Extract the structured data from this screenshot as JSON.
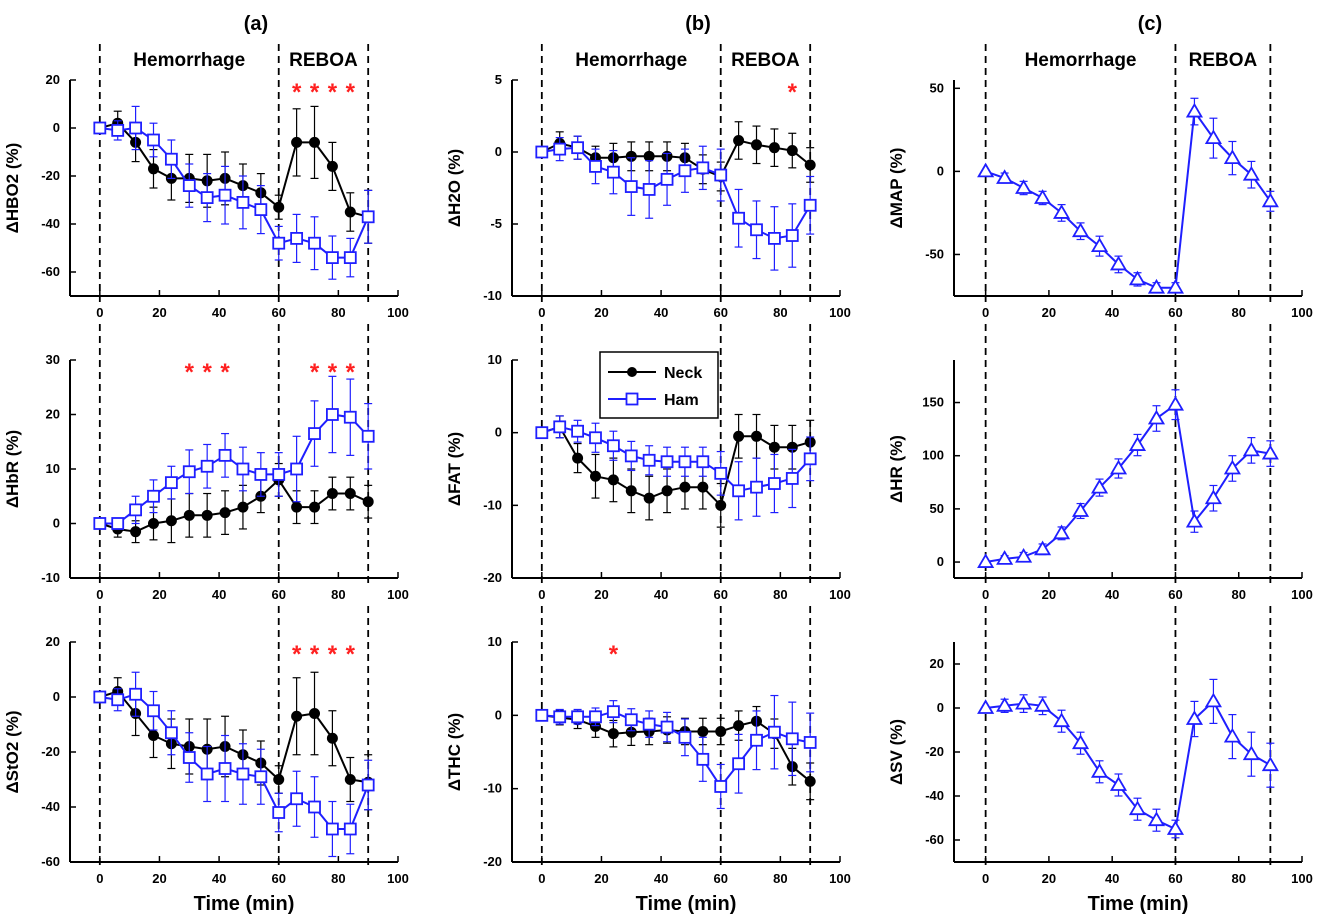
{
  "colors": {
    "neck": "#000000",
    "ham": "#1f1fff",
    "star": "#ff2020"
  },
  "x_ticks": [
    "0",
    "20",
    "40",
    "60",
    "80",
    "100"
  ],
  "chart_data": [
    {
      "type": "line",
      "panel_label": "(a)",
      "xlabel": "",
      "ylabel": "ΔHBO2 (%)",
      "ylim": [
        -70,
        20
      ],
      "yticks": [
        -60,
        -40,
        -20,
        0,
        20
      ],
      "xlim": [
        -10,
        100
      ],
      "phases": [
        "Hemorrhage",
        "REBOA"
      ],
      "stars_x": [
        66,
        72,
        78,
        84
      ],
      "series": [
        {
          "x": [
            0,
            6,
            12,
            18,
            24,
            30,
            36,
            42,
            48,
            54,
            60,
            66,
            72,
            78,
            84,
            90
          ],
          "y": [
            0,
            2,
            -6,
            -17,
            -21,
            -21,
            -22,
            -21,
            -24,
            -27,
            -33,
            -6,
            -6,
            -16,
            -35,
            -37
          ],
          "err": [
            0,
            5,
            8,
            8,
            9,
            10,
            11,
            11,
            9,
            8,
            5,
            14,
            15,
            10,
            8,
            11
          ],
          "marker": "circle",
          "color": "#000000"
        },
        {
          "x": [
            0,
            6,
            12,
            18,
            24,
            30,
            36,
            42,
            48,
            54,
            60,
            66,
            72,
            78,
            84,
            90
          ],
          "y": [
            0,
            -1,
            0,
            -5,
            -13,
            -24,
            -29,
            -28,
            -31,
            -34,
            -48,
            -46,
            -48,
            -54,
            -54,
            -37
          ],
          "err": [
            0,
            4,
            9,
            7,
            8,
            9,
            10,
            12,
            11,
            10,
            7,
            10,
            11,
            9,
            8,
            11
          ],
          "marker": "square",
          "color": "#1f1fff"
        }
      ]
    },
    {
      "type": "line",
      "panel_label": "(b)",
      "xlabel": "",
      "ylabel": "ΔH2O (%)",
      "ylim": [
        -10,
        5
      ],
      "yticks": [
        -10,
        -5,
        0,
        5
      ],
      "xlim": [
        -10,
        100
      ],
      "phases": [
        "Hemorrhage",
        "REBOA"
      ],
      "stars_x": [
        84
      ],
      "series": [
        {
          "x": [
            0,
            6,
            12,
            18,
            24,
            30,
            36,
            42,
            48,
            54,
            60,
            66,
            72,
            78,
            84,
            90
          ],
          "y": [
            0,
            0.6,
            0.3,
            -0.4,
            -0.4,
            -0.3,
            -0.3,
            -0.3,
            -0.4,
            -1.2,
            -1.7,
            0.8,
            0.5,
            0.3,
            0.1,
            -0.9
          ],
          "err": [
            0,
            0.8,
            0.8,
            0.8,
            1.0,
            1.0,
            1.0,
            1.0,
            1.0,
            1.0,
            1.0,
            1.3,
            1.3,
            1.3,
            1.2,
            1.2
          ],
          "marker": "circle",
          "color": "#000000"
        },
        {
          "x": [
            0,
            6,
            12,
            18,
            24,
            30,
            36,
            42,
            48,
            54,
            60,
            66,
            72,
            78,
            84,
            90
          ],
          "y": [
            0,
            0.2,
            0.3,
            -1.0,
            -1.4,
            -2.4,
            -2.6,
            -1.9,
            -1.3,
            -1.1,
            -1.6,
            -4.6,
            -5.4,
            -6.0,
            -5.8,
            -3.7
          ],
          "err": [
            0,
            0.8,
            0.8,
            1.2,
            1.5,
            2.0,
            2.0,
            1.8,
            1.5,
            1.5,
            1.8,
            2.0,
            2.0,
            2.2,
            2.2,
            2.0
          ],
          "marker": "square",
          "color": "#1f1fff"
        }
      ]
    },
    {
      "type": "line",
      "panel_label": "(c)",
      "xlabel": "",
      "ylabel": "ΔMAP (%)",
      "ylim": [
        -75,
        55
      ],
      "yticks": [
        -50,
        0,
        50
      ],
      "xlim": [
        -10,
        100
      ],
      "phases": [
        "Hemorrhage",
        "REBOA"
      ],
      "stars_x": [],
      "series": [
        {
          "x": [
            0,
            6,
            12,
            18,
            24,
            30,
            36,
            42,
            48,
            54,
            60,
            66,
            72,
            78,
            84,
            90
          ],
          "y": [
            0,
            -4,
            -10,
            -16,
            -25,
            -36,
            -45,
            -56,
            -65,
            -70,
            -70,
            36,
            20,
            8,
            -2,
            -18
          ],
          "err": [
            0,
            3,
            4,
            4,
            5,
            5,
            6,
            5,
            4,
            3,
            3,
            8,
            12,
            10,
            8,
            6
          ],
          "marker": "triangle",
          "color": "#1f1fff"
        }
      ]
    },
    {
      "type": "line",
      "panel_label": "",
      "xlabel": "",
      "ylabel": "ΔHbR (%)",
      "ylim": [
        -10,
        30
      ],
      "yticks": [
        -10,
        0,
        10,
        20,
        30
      ],
      "xlim": [
        -10,
        100
      ],
      "phases": [],
      "stars_x": [
        30,
        36,
        42,
        72,
        78,
        84
      ],
      "series": [
        {
          "x": [
            0,
            6,
            12,
            18,
            24,
            30,
            36,
            42,
            48,
            54,
            60,
            66,
            72,
            78,
            84,
            90
          ],
          "y": [
            0,
            -1,
            -1.5,
            0,
            0.5,
            1.5,
            1.5,
            2,
            3,
            5,
            8,
            3,
            3,
            5.5,
            5.5,
            4
          ],
          "err": [
            0,
            1.5,
            2,
            3,
            4,
            4,
            4,
            4,
            4,
            3,
            3,
            3,
            3,
            3,
            3,
            3
          ],
          "marker": "circle",
          "color": "#000000"
        },
        {
          "x": [
            0,
            6,
            12,
            18,
            24,
            30,
            36,
            42,
            48,
            54,
            60,
            66,
            72,
            78,
            84,
            90
          ],
          "y": [
            0,
            0,
            2.5,
            5,
            7.5,
            9.5,
            10.5,
            12.5,
            10,
            9,
            9,
            10,
            16.5,
            20,
            19.5,
            16
          ],
          "err": [
            0,
            1,
            2.5,
            3,
            3,
            4,
            4,
            4,
            4,
            4,
            4,
            6,
            6,
            7,
            7,
            6
          ],
          "marker": "square",
          "color": "#1f1fff"
        }
      ]
    },
    {
      "type": "line",
      "panel_label": "",
      "xlabel": "",
      "ylabel": "ΔFAT (%)",
      "ylim": [
        -20,
        10
      ],
      "yticks": [
        -20,
        -10,
        0,
        10
      ],
      "xlim": [
        -10,
        100
      ],
      "phases": [],
      "stars_x": [],
      "legend": {
        "entries": [
          "Neck",
          "Ham"
        ]
      },
      "series": [
        {
          "name": "Neck",
          "x": [
            0,
            6,
            12,
            18,
            24,
            30,
            36,
            42,
            48,
            54,
            60,
            66,
            72,
            78,
            84,
            90
          ],
          "y": [
            0,
            0.8,
            -3.5,
            -6,
            -6.5,
            -8,
            -9,
            -8,
            -7.5,
            -7.5,
            -10,
            -0.5,
            -0.5,
            -2,
            -2,
            -1.3
          ],
          "err": [
            0,
            1.5,
            2,
            3,
            3,
            3,
            3,
            3,
            3,
            3,
            3,
            3,
            3,
            3,
            3,
            3
          ],
          "marker": "circle",
          "color": "#000000"
        },
        {
          "name": "Ham",
          "x": [
            0,
            6,
            12,
            18,
            24,
            30,
            36,
            42,
            48,
            54,
            60,
            66,
            72,
            78,
            84,
            90
          ],
          "y": [
            0,
            0.8,
            0.2,
            -0.7,
            -1.8,
            -3.2,
            -3.8,
            -4,
            -4,
            -4,
            -5.6,
            -8,
            -7.5,
            -7,
            -6.3,
            -3.6
          ],
          "err": [
            0,
            1.5,
            1.5,
            2,
            2,
            2,
            2,
            2,
            2,
            2,
            3,
            4,
            4,
            4,
            4,
            3
          ],
          "marker": "square",
          "color": "#1f1fff"
        }
      ]
    },
    {
      "type": "line",
      "panel_label": "",
      "xlabel": "",
      "ylabel": "ΔHR (%)",
      "ylim": [
        -15,
        190
      ],
      "yticks": [
        0,
        50,
        100,
        150
      ],
      "xlim": [
        -10,
        100
      ],
      "phases": [],
      "stars_x": [],
      "series": [
        {
          "x": [
            0,
            6,
            12,
            18,
            24,
            30,
            36,
            42,
            48,
            54,
            60,
            66,
            72,
            78,
            84,
            90
          ],
          "y": [
            0,
            3,
            5,
            12,
            27,
            48,
            70,
            88,
            110,
            135,
            148,
            38,
            60,
            88,
            105,
            102
          ],
          "err": [
            0,
            3,
            4,
            5,
            6,
            7,
            8,
            9,
            10,
            12,
            14,
            10,
            12,
            12,
            12,
            12
          ],
          "marker": "triangle",
          "color": "#1f1fff"
        }
      ]
    },
    {
      "type": "line",
      "panel_label": "",
      "xlabel": "Time (min)",
      "ylabel": "ΔStO2 (%)",
      "ylim": [
        -60,
        20
      ],
      "yticks": [
        -60,
        -40,
        -20,
        0,
        20
      ],
      "xlim": [
        -10,
        100
      ],
      "phases": [],
      "stars_x": [
        66,
        72,
        78,
        84
      ],
      "series": [
        {
          "x": [
            0,
            6,
            12,
            18,
            24,
            30,
            36,
            42,
            48,
            54,
            60,
            66,
            72,
            78,
            84,
            90
          ],
          "y": [
            0,
            2,
            -6,
            -14,
            -17,
            -18,
            -19,
            -18,
            -21,
            -24,
            -30,
            -7,
            -6,
            -15,
            -30,
            -31
          ],
          "err": [
            0,
            5,
            8,
            8,
            9,
            10,
            11,
            11,
            9,
            8,
            5,
            14,
            15,
            10,
            8,
            10
          ],
          "marker": "circle",
          "color": "#000000"
        },
        {
          "x": [
            0,
            6,
            12,
            18,
            24,
            30,
            36,
            42,
            48,
            54,
            60,
            66,
            72,
            78,
            84,
            90
          ],
          "y": [
            0,
            -1,
            1,
            -5,
            -13,
            -22,
            -28,
            -26,
            -28,
            -29,
            -42,
            -37,
            -40,
            -48,
            -48,
            -32
          ],
          "err": [
            0,
            4,
            8,
            7,
            8,
            9,
            10,
            12,
            11,
            10,
            7,
            10,
            11,
            10,
            9,
            9
          ],
          "marker": "square",
          "color": "#1f1fff"
        }
      ]
    },
    {
      "type": "line",
      "panel_label": "",
      "xlabel": "Time (min)",
      "ylabel": "ΔTHC (%)",
      "ylim": [
        -20,
        10
      ],
      "yticks": [
        -20,
        -10,
        0,
        10
      ],
      "xlim": [
        -10,
        100
      ],
      "phases": [],
      "stars_x": [
        24
      ],
      "series": [
        {
          "x": [
            0,
            6,
            12,
            18,
            24,
            30,
            36,
            42,
            48,
            54,
            60,
            66,
            72,
            78,
            84,
            90
          ],
          "y": [
            0,
            -0.3,
            -0.6,
            -1.5,
            -2.5,
            -2.3,
            -2.2,
            -2,
            -2.2,
            -2.2,
            -2.2,
            -1.4,
            -0.8,
            -2.5,
            -7,
            -9
          ],
          "err": [
            0,
            1,
            1.2,
            1.5,
            1.8,
            1.8,
            1.8,
            1.8,
            1.8,
            1.8,
            1.8,
            2,
            2,
            2,
            2.5,
            2.5
          ],
          "marker": "circle",
          "color": "#000000"
        },
        {
          "x": [
            0,
            6,
            12,
            18,
            24,
            30,
            36,
            42,
            48,
            54,
            60,
            66,
            72,
            78,
            84,
            90
          ],
          "y": [
            0,
            -0.2,
            -0.2,
            -0.2,
            0.5,
            -0.6,
            -1.2,
            -1.6,
            -3,
            -6,
            -9.7,
            -6.6,
            -3.4,
            -2.3,
            -3.2,
            -3.7
          ],
          "err": [
            0,
            1,
            1,
            1.2,
            1.5,
            1.5,
            1.8,
            2,
            2.5,
            3,
            3,
            4,
            4,
            5,
            5,
            4
          ],
          "marker": "square",
          "color": "#1f1fff"
        }
      ]
    },
    {
      "type": "line",
      "panel_label": "",
      "xlabel": "Time (min)",
      "ylabel": "ΔSV (%)",
      "ylim": [
        -70,
        30
      ],
      "yticks": [
        -60,
        -40,
        -20,
        0,
        20
      ],
      "xlim": [
        -10,
        100
      ],
      "phases": [],
      "stars_x": [],
      "series": [
        {
          "x": [
            0,
            6,
            12,
            18,
            24,
            30,
            36,
            42,
            48,
            54,
            60,
            66,
            72,
            78,
            84,
            90
          ],
          "y": [
            0,
            1,
            2,
            1,
            -6,
            -16,
            -29,
            -35,
            -46,
            -51,
            -55,
            -5,
            3,
            -13,
            -21,
            -26
          ],
          "err": [
            0,
            3,
            4,
            4,
            5,
            5,
            5,
            5,
            5,
            5,
            4,
            8,
            10,
            10,
            10,
            10
          ],
          "marker": "triangle",
          "color": "#1f1fff"
        }
      ]
    }
  ]
}
